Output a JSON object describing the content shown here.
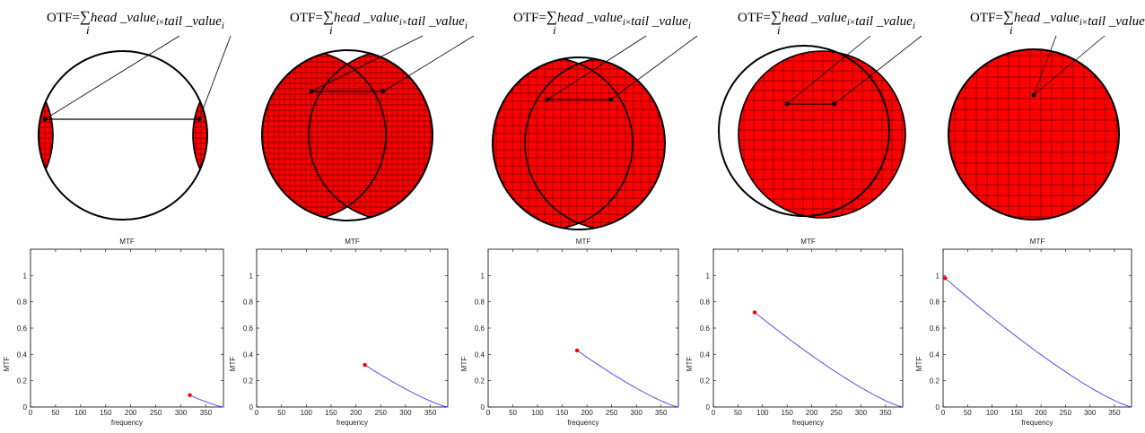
{
  "formula": {
    "prefix": "OTF=",
    "sum": "∑",
    "index": "i",
    "head": "head _value",
    "times": "×",
    "tail": "tail _value"
  },
  "colors": {
    "fill": "#ff0000",
    "grid": "#6b0000",
    "curve": "#3c3cff",
    "marker": "#ff0000",
    "outline": "#000000"
  },
  "axis_labels": {
    "title": "MTF",
    "xlabel": "frequency",
    "ylabel": "MTF"
  },
  "chart_data": [
    {
      "type": "line",
      "title": "MTF",
      "xlabel": "frequency",
      "ylabel": "MTF",
      "xlim": [
        0,
        385
      ],
      "ylim": [
        0,
        1.2
      ],
      "xticks": [
        0,
        50,
        100,
        150,
        200,
        250,
        300,
        350
      ],
      "yticks": [
        0,
        0.2,
        0.4,
        0.6,
        0.8,
        1
      ],
      "marker": {
        "x": 318,
        "y": 0.09
      },
      "series": [
        {
          "x_start": 318,
          "x_end": 385
        }
      ]
    },
    {
      "type": "line",
      "title": "MTF",
      "xlabel": "frequency",
      "ylabel": "MTF",
      "xlim": [
        0,
        385
      ],
      "ylim": [
        0,
        1.2
      ],
      "xticks": [
        0,
        50,
        100,
        150,
        200,
        250,
        300,
        350
      ],
      "yticks": [
        0,
        0.2,
        0.4,
        0.6,
        0.8,
        1
      ],
      "marker": {
        "x": 218,
        "y": 0.32
      },
      "series": [
        {
          "x_start": 218,
          "x_end": 385
        }
      ]
    },
    {
      "type": "line",
      "title": "MTF",
      "xlabel": "frequency",
      "ylabel": "MTF",
      "xlim": [
        0,
        385
      ],
      "ylim": [
        0,
        1.2
      ],
      "xticks": [
        0,
        50,
        100,
        150,
        200,
        250,
        300,
        350
      ],
      "yticks": [
        0,
        0.2,
        0.4,
        0.6,
        0.8,
        1
      ],
      "marker": {
        "x": 180,
        "y": 0.43
      },
      "series": [
        {
          "x_start": 180,
          "x_end": 385
        }
      ]
    },
    {
      "type": "line",
      "title": "MTF",
      "xlabel": "frequency",
      "ylabel": "MTF",
      "xlim": [
        0,
        385
      ],
      "ylim": [
        0,
        1.2
      ],
      "xticks": [
        0,
        50,
        100,
        150,
        200,
        250,
        300,
        350
      ],
      "yticks": [
        0,
        0.2,
        0.4,
        0.6,
        0.8,
        1
      ],
      "marker": {
        "x": 84,
        "y": 0.72
      },
      "series": [
        {
          "x_start": 84,
          "x_end": 385
        }
      ]
    },
    {
      "type": "line",
      "title": "MTF",
      "xlabel": "frequency",
      "ylabel": "MTF",
      "xlim": [
        0,
        385
      ],
      "ylim": [
        0,
        1.2
      ],
      "xticks": [
        0,
        50,
        100,
        150,
        200,
        250,
        300,
        350
      ],
      "yticks": [
        0,
        0.2,
        0.4,
        0.6,
        0.8,
        1
      ],
      "marker": {
        "x": 4,
        "y": 0.98
      },
      "series": [
        {
          "x_start": 4,
          "x_end": 385
        }
      ]
    }
  ]
}
